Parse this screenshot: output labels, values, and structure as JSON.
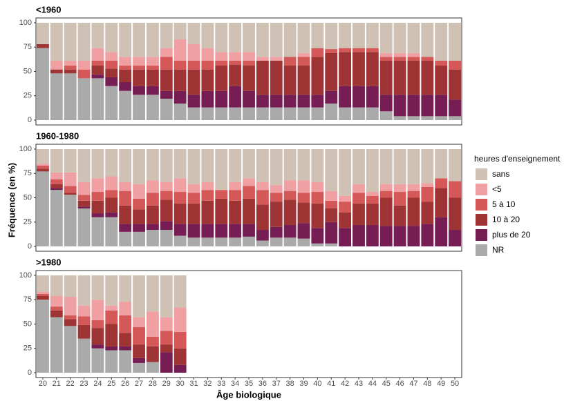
{
  "y_label": "Fréquence (en %)",
  "legend_title": "heures d'enseignement",
  "x_axis": {
    "label": "Âge biologique",
    "categories": [
      "20",
      "21",
      "22",
      "23",
      "24",
      "25",
      "26",
      "27",
      "28",
      "29",
      "30",
      "31",
      "32",
      "33",
      "34",
      "35",
      "36",
      "37",
      "38",
      "39",
      "40",
      "41",
      "42",
      "43",
      "44",
      "45",
      "46",
      "47",
      "48",
      "49",
      "50"
    ]
  },
  "chart_data": [
    {
      "type": "bar",
      "stacked": true,
      "title": "<1960",
      "ylim": [
        0,
        100
      ],
      "yticks": [
        0,
        25,
        50,
        75,
        100
      ],
      "series": [
        {
          "name": "NR",
          "color": "#aaaaaa",
          "values": [
            74,
            48,
            48,
            43,
            43,
            35,
            30,
            26,
            26,
            22,
            17,
            13,
            13,
            13,
            13,
            13,
            13,
            13,
            13,
            13,
            13,
            17,
            13,
            13,
            13,
            9,
            4,
            4,
            4,
            4,
            4
          ]
        },
        {
          "name": "plus de 20",
          "color": "#761d53",
          "values": [
            0,
            0,
            0,
            0,
            4,
            9,
            9,
            9,
            9,
            8,
            13,
            13,
            17,
            17,
            22,
            17,
            13,
            13,
            13,
            13,
            13,
            13,
            22,
            22,
            22,
            17,
            22,
            22,
            22,
            22,
            17
          ]
        },
        {
          "name": "10 à 20",
          "color": "#9e3434",
          "values": [
            4,
            4,
            4,
            0,
            9,
            9,
            13,
            17,
            17,
            22,
            22,
            26,
            22,
            26,
            22,
            26,
            35,
            35,
            30,
            30,
            39,
            39,
            35,
            35,
            35,
            35,
            35,
            35,
            35,
            30,
            31
          ]
        },
        {
          "name": "5 à 10",
          "color": "#d45858",
          "values": [
            0,
            0,
            4,
            9,
            5,
            8,
            4,
            4,
            4,
            13,
            9,
            9,
            9,
            5,
            4,
            5,
            0,
            0,
            9,
            9,
            9,
            4,
            4,
            4,
            4,
            4,
            4,
            4,
            4,
            5,
            9
          ]
        },
        {
          "name": "<5",
          "color": "#f0a0a2",
          "values": [
            0,
            9,
            5,
            9,
            13,
            9,
            9,
            9,
            9,
            9,
            22,
            17,
            13,
            9,
            9,
            9,
            4,
            4,
            0,
            4,
            0,
            0,
            0,
            0,
            0,
            4,
            4,
            4,
            0,
            0,
            0
          ]
        },
        {
          "name": "sans",
          "color": "#cfc1b3",
          "values": [
            22,
            39,
            39,
            39,
            26,
            30,
            35,
            35,
            35,
            26,
            17,
            22,
            26,
            30,
            30,
            30,
            35,
            35,
            35,
            31,
            26,
            27,
            26,
            26,
            26,
            31,
            31,
            31,
            35,
            39,
            39
          ]
        }
      ]
    },
    {
      "type": "bar",
      "stacked": true,
      "title": "1960-1980",
      "ylim": [
        0,
        100
      ],
      "yticks": [
        0,
        25,
        50,
        75,
        100
      ],
      "series": [
        {
          "name": "NR",
          "color": "#aaaaaa",
          "values": [
            77,
            58,
            53,
            39,
            30,
            30,
            15,
            15,
            17,
            17,
            11,
            9,
            9,
            9,
            9,
            10,
            6,
            9,
            9,
            8,
            3,
            3,
            0,
            0,
            0,
            0,
            0,
            0,
            0,
            0,
            0
          ]
        },
        {
          "name": "plus de 20",
          "color": "#761d53",
          "values": [
            0,
            2,
            0,
            2,
            4,
            5,
            8,
            8,
            6,
            9,
            12,
            14,
            14,
            14,
            14,
            13,
            11,
            11,
            13,
            16,
            16,
            22,
            19,
            22,
            22,
            21,
            21,
            21,
            23,
            30,
            17
          ]
        },
        {
          "name": "10 à 20",
          "color": "#9e3434",
          "values": [
            3,
            4,
            2,
            6,
            13,
            15,
            19,
            15,
            19,
            22,
            21,
            21,
            24,
            26,
            24,
            26,
            26,
            26,
            26,
            21,
            25,
            14,
            16,
            22,
            22,
            29,
            21,
            29,
            23,
            30,
            33
          ]
        },
        {
          "name": "5 à 10",
          "color": "#d45858",
          "values": [
            3,
            5,
            7,
            6,
            9,
            8,
            15,
            11,
            13,
            9,
            12,
            11,
            11,
            9,
            11,
            13,
            15,
            9,
            9,
            10,
            12,
            8,
            11,
            11,
            8,
            7,
            14,
            7,
            15,
            10,
            17
          ]
        },
        {
          "name": "<5",
          "color": "#f0a0a2",
          "values": [
            2,
            7,
            14,
            13,
            14,
            14,
            9,
            15,
            13,
            9,
            14,
            9,
            8,
            0,
            8,
            8,
            8,
            8,
            11,
            13,
            10,
            10,
            6,
            9,
            4,
            7,
            8,
            7,
            4,
            0,
            0
          ]
        },
        {
          "name": "sans",
          "color": "#cfc1b3",
          "values": [
            15,
            24,
            24,
            34,
            30,
            28,
            34,
            36,
            32,
            34,
            30,
            36,
            34,
            42,
            34,
            30,
            34,
            37,
            32,
            32,
            34,
            43,
            48,
            36,
            44,
            36,
            36,
            36,
            35,
            30,
            33
          ]
        }
      ]
    },
    {
      "type": "bar",
      "stacked": true,
      "title": ">1980",
      "ylim": [
        0,
        100
      ],
      "yticks": [
        0,
        25,
        50,
        75,
        100
      ],
      "series": [
        {
          "name": "NR",
          "color": "#aaaaaa",
          "values": [
            75,
            57,
            48,
            35,
            25,
            23,
            23,
            10,
            11,
            0,
            0,
            null,
            null,
            null,
            null,
            null,
            null,
            null,
            null,
            null,
            null,
            null,
            null,
            null,
            null,
            null,
            null,
            null,
            null,
            null,
            null
          ]
        },
        {
          "name": "plus de 20",
          "color": "#761d53",
          "values": [
            0,
            0,
            0,
            0,
            4,
            4,
            4,
            5,
            0,
            21,
            8,
            null,
            null,
            null,
            null,
            null,
            null,
            null,
            null,
            null,
            null,
            null,
            null,
            null,
            null,
            null,
            null,
            null,
            null,
            null,
            null
          ]
        },
        {
          "name": "10 à 20",
          "color": "#9e3434",
          "values": [
            4,
            7,
            7,
            14,
            17,
            23,
            14,
            14,
            16,
            8,
            17,
            null,
            null,
            null,
            null,
            null,
            null,
            null,
            null,
            null,
            null,
            null,
            null,
            null,
            null,
            null,
            null,
            null,
            null,
            null,
            null
          ]
        },
        {
          "name": "5 à 10",
          "color": "#d45858",
          "values": [
            2,
            4,
            4,
            9,
            8,
            14,
            18,
            18,
            10,
            14,
            17,
            null,
            null,
            null,
            null,
            null,
            null,
            null,
            null,
            null,
            null,
            null,
            null,
            null,
            null,
            null,
            null,
            null,
            null,
            null,
            null
          ]
        },
        {
          "name": "<5",
          "color": "#f0a0a2",
          "values": [
            2,
            11,
            19,
            11,
            21,
            5,
            14,
            10,
            26,
            14,
            25,
            null,
            null,
            null,
            null,
            null,
            null,
            null,
            null,
            null,
            null,
            null,
            null,
            null,
            null,
            null,
            null,
            null,
            null,
            null,
            null
          ]
        },
        {
          "name": "sans",
          "color": "#cfc1b3",
          "values": [
            17,
            21,
            22,
            31,
            25,
            31,
            27,
            43,
            37,
            43,
            33,
            null,
            null,
            null,
            null,
            null,
            null,
            null,
            null,
            null,
            null,
            null,
            null,
            null,
            null,
            null,
            null,
            null,
            null,
            null,
            null
          ]
        }
      ]
    }
  ]
}
